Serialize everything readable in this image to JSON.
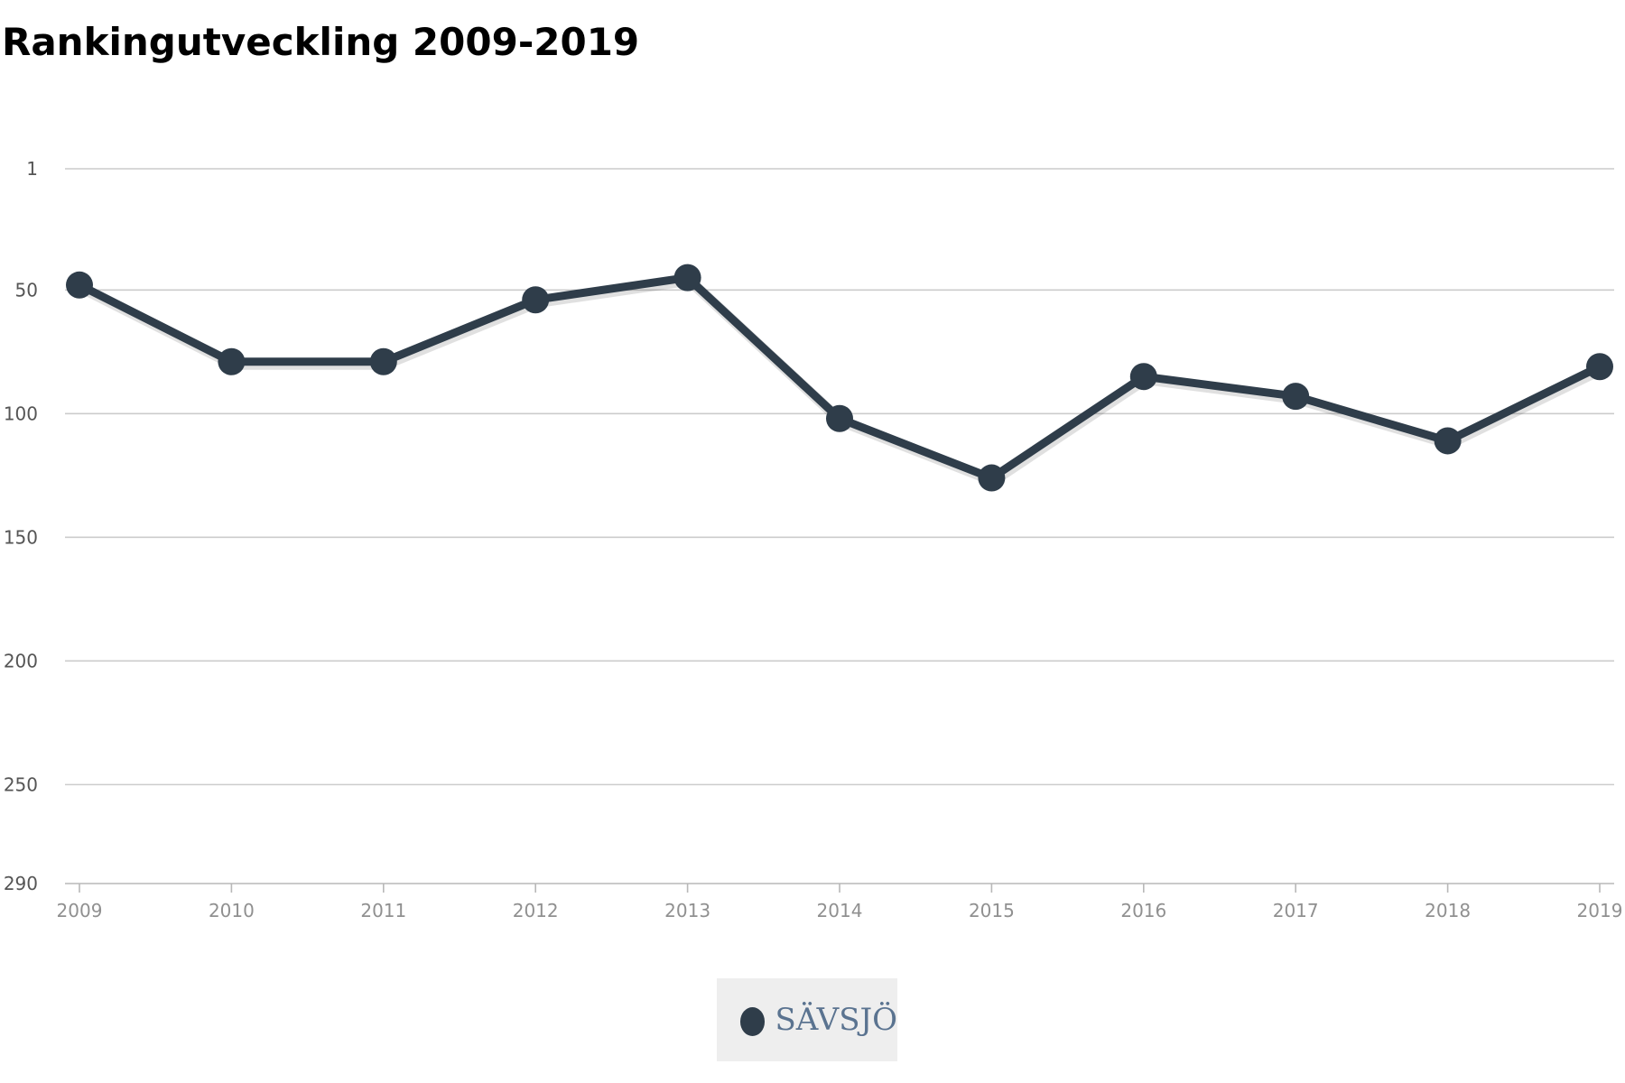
{
  "chart_data": {
    "type": "line",
    "title": "Rankingutveckling 2009-2019",
    "xlabel": "",
    "ylabel": "",
    "categories": [
      "2009",
      "2010",
      "2011",
      "2012",
      "2013",
      "2014",
      "2015",
      "2016",
      "2017",
      "2018",
      "2019"
    ],
    "series": [
      {
        "name": "SÄVSJÖ",
        "color": "#2f3d4a",
        "values": [
          48,
          79,
          79,
          54,
          45,
          102,
          126,
          85,
          93,
          111,
          81
        ]
      }
    ],
    "y_tick_labels": [
      "1",
      "50",
      "100",
      "150",
      "200",
      "250",
      "290"
    ],
    "ylim": [
      1,
      290
    ],
    "y_reversed": true,
    "grid": true,
    "legend_position": "bottom-center"
  }
}
